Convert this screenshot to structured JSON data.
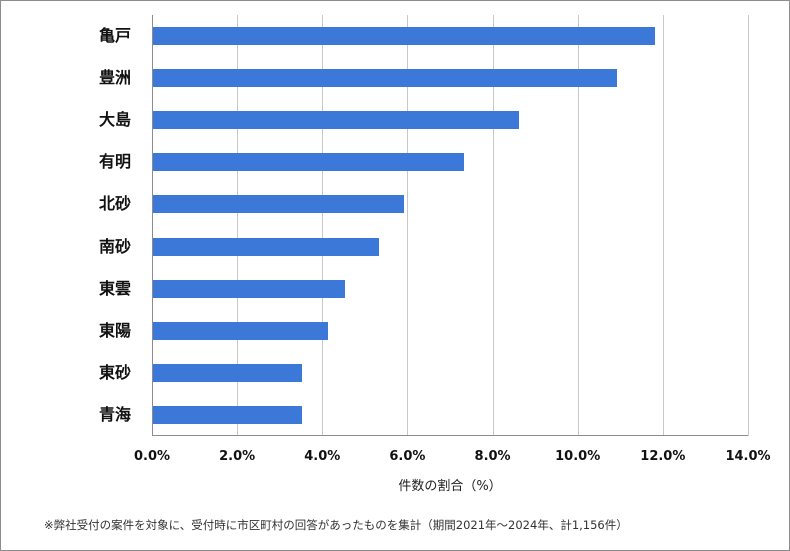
{
  "chart_data": {
    "type": "bar",
    "orientation": "horizontal",
    "categories": [
      "亀戸",
      "豊洲",
      "大島",
      "有明",
      "北砂",
      "南砂",
      "東雲",
      "東陽",
      "東砂",
      "青海"
    ],
    "values": [
      11.8,
      10.9,
      8.6,
      7.3,
      5.9,
      5.3,
      4.5,
      4.1,
      3.5,
      3.5
    ],
    "value_labels": [
      "11.8",
      "10.9",
      "8.6",
      "7.3",
      "5.9",
      "5.3",
      "4.5",
      "4.1",
      "3.5",
      "3.5"
    ],
    "title": "",
    "xlabel": "件数の割合（%）",
    "ylabel": "",
    "xlim": [
      0,
      14
    ],
    "x_ticks": [
      "0.0%",
      "2.0%",
      "4.0%",
      "6.0%",
      "8.0%",
      "10.0%",
      "12.0%",
      "14.0%"
    ],
    "grid": true,
    "legend": null,
    "bar_color": "#3c78d8",
    "annotation": "※弊社受付の案件を対象に、受付時に市区町村の回答があったものを集計（期間2021年～2024年、計1,156件）"
  }
}
